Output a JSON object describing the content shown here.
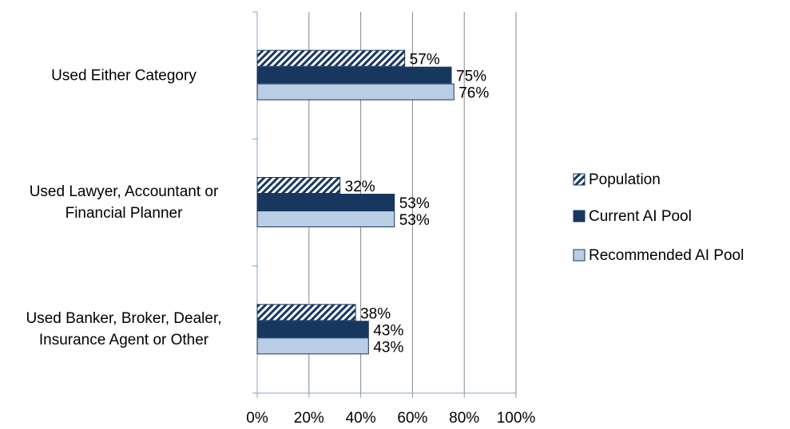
{
  "chart_data": {
    "type": "bar",
    "orientation": "horizontal",
    "categories": [
      "Used Either Category",
      "Used Lawyer, Accountant or Financial Planner",
      "Used Banker, Broker, Dealer, Insurance Agent or Other"
    ],
    "series": [
      {
        "name": "Population",
        "color": "#17375e",
        "pattern": "hatch",
        "values": [
          57,
          32,
          38
        ],
        "value_labels": [
          "57%",
          "32%",
          "38%"
        ]
      },
      {
        "name": "Current AI Pool",
        "color": "#17375e",
        "values": [
          75,
          53,
          43
        ],
        "value_labels": [
          "75%",
          "53%",
          "43%"
        ]
      },
      {
        "name": "Recommended AI Pool",
        "color": "#b9cde5",
        "values": [
          76,
          53,
          43
        ],
        "value_labels": [
          "76%",
          "53%",
          "43%"
        ]
      }
    ],
    "xlim": [
      0,
      100
    ],
    "xticks": [
      {
        "value": 0,
        "label": "0%"
      },
      {
        "value": 20,
        "label": "20%"
      },
      {
        "value": 40,
        "label": "40%"
      },
      {
        "value": 60,
        "label": "60%"
      },
      {
        "value": 80,
        "label": "80%"
      },
      {
        "value": 100,
        "label": "100%"
      }
    ],
    "grid": true,
    "legend": "right"
  }
}
